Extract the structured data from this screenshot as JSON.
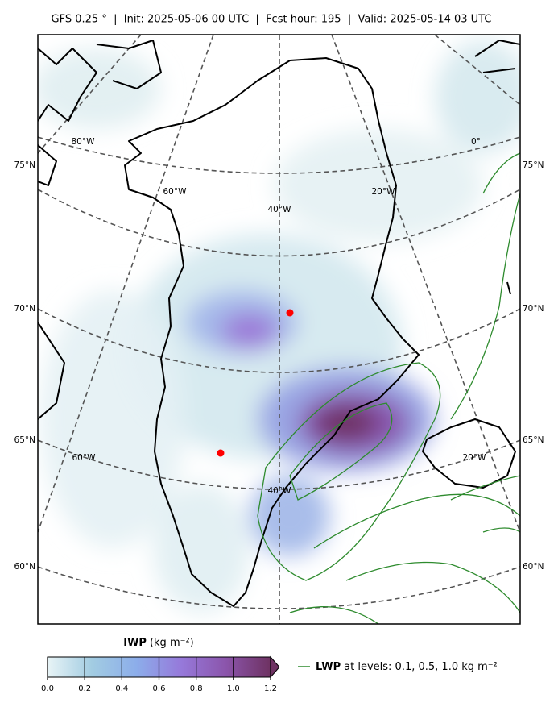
{
  "header": {
    "title": "GFS 0.25 °  |  Init: 2025-05-06 00 UTC  |  Fcst hour: 195  |  Valid: 2025-05-14 03 UTC"
  },
  "map": {
    "lat_labels": [
      "75°N",
      "70°N",
      "65°N",
      "60°N"
    ],
    "lon_labels": [
      "80°W",
      "0°",
      "60°W",
      "40°W",
      "20°W",
      "60°W",
      "40°W",
      "20°W"
    ]
  },
  "colorbar": {
    "label_bold": "IWP",
    "label_unit": "(kg m⁻²)",
    "lim": [
      0,
      1.2
    ],
    "ticks": [
      {
        "value": 0,
        "label": "0.0"
      },
      0.2,
      0.4,
      0.6,
      0.8,
      {
        "value": 1,
        "label": "1.0"
      },
      1.2
    ],
    "colors": [
      "#e8f4f6",
      "#a2cce2",
      "#8cadea",
      "#9679da",
      "#8b55ab",
      "#6e3262"
    ]
  },
  "legend": {
    "label_bold": "LWP",
    "label": "at levels: 0.1, 0.5, 1.0  kg m⁻²",
    "color": "#2e8b2e"
  }
}
